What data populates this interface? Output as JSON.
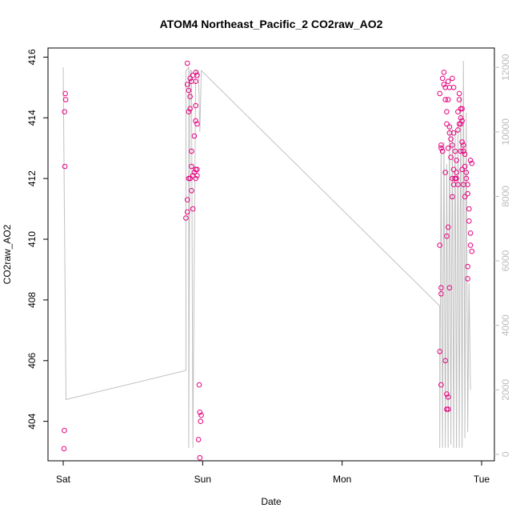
{
  "chart_data": {
    "type": "scatter",
    "title": "ATOM4 Northeast_Pacific_2 CO2raw_AO2",
    "xlabel": "Date",
    "ylabel": "CO2raw_AO2",
    "x_tick_labels": [
      "Sat",
      "Sun",
      "Mon",
      "Tue"
    ],
    "y_left": {
      "range": [
        402.7,
        416.3
      ],
      "ticks": [
        404,
        406,
        408,
        410,
        412,
        414,
        416
      ]
    },
    "y_right": {
      "range": [
        -200,
        12600
      ],
      "ticks": [
        0,
        2000,
        4000,
        6000,
        8000,
        10000,
        12000
      ],
      "color": "#bbbbbb"
    },
    "x_range_days": [
      0,
      3.0
    ],
    "colors": {
      "points": "#e6007e",
      "line": "#c0c0c0",
      "axis": "#000000"
    },
    "series": [
      {
        "type": "scatter",
        "axis": "left",
        "points": [
          [
            0.015,
            414.8
          ],
          [
            0.018,
            414.6
          ],
          [
            0.01,
            414.2
          ],
          [
            0.012,
            412.4
          ],
          [
            0.008,
            403.7
          ],
          [
            0.006,
            403.1
          ],
          [
            0.89,
            415.8
          ],
          [
            0.91,
            415.3
          ],
          [
            0.93,
            415.4
          ],
          [
            0.95,
            415.5
          ],
          [
            0.96,
            415.4
          ],
          [
            0.95,
            415.2
          ],
          [
            0.92,
            415.2
          ],
          [
            0.89,
            415.1
          ],
          [
            0.9,
            414.9
          ],
          [
            0.91,
            414.7
          ],
          [
            0.95,
            414.4
          ],
          [
            0.91,
            414.3
          ],
          [
            0.9,
            414.2
          ],
          [
            0.95,
            413.9
          ],
          [
            0.96,
            413.8
          ],
          [
            0.94,
            413.4
          ],
          [
            0.92,
            412.9
          ],
          [
            0.92,
            412.4
          ],
          [
            0.95,
            412.3
          ],
          [
            0.96,
            412.3
          ],
          [
            0.94,
            412.2
          ],
          [
            0.96,
            412.1
          ],
          [
            0.9,
            412.0
          ],
          [
            0.91,
            412.0
          ],
          [
            0.93,
            412.1
          ],
          [
            0.95,
            412.0
          ],
          [
            0.92,
            411.6
          ],
          [
            0.89,
            411.3
          ],
          [
            0.93,
            411.0
          ],
          [
            0.89,
            410.9
          ],
          [
            0.88,
            410.7
          ],
          [
            0.975,
            405.2
          ],
          [
            0.98,
            404.3
          ],
          [
            0.99,
            404.2
          ],
          [
            0.985,
            404.0
          ],
          [
            0.97,
            403.4
          ],
          [
            0.98,
            402.8
          ],
          [
            2.7,
            414.8
          ],
          [
            2.71,
            413.1
          ],
          [
            2.71,
            413.0
          ],
          [
            2.72,
            412.9
          ],
          [
            2.72,
            415.3
          ],
          [
            2.73,
            415.5
          ],
          [
            2.73,
            415.1
          ],
          [
            2.74,
            415.0
          ],
          [
            2.74,
            414.6
          ],
          [
            2.75,
            414.2
          ],
          [
            2.75,
            413.8
          ],
          [
            2.76,
            415.2
          ],
          [
            2.76,
            413.0
          ],
          [
            2.77,
            413.7
          ],
          [
            2.77,
            413.5
          ],
          [
            2.78,
            413.3
          ],
          [
            2.78,
            412.7
          ],
          [
            2.79,
            413.1
          ],
          [
            2.79,
            412.0
          ],
          [
            2.8,
            412.3
          ],
          [
            2.8,
            413.5
          ],
          [
            2.81,
            412.9
          ],
          [
            2.81,
            412.0
          ],
          [
            2.82,
            412.6
          ],
          [
            2.82,
            412.2
          ],
          [
            2.83,
            413.6
          ],
          [
            2.83,
            414.2
          ],
          [
            2.84,
            414.8
          ],
          [
            2.84,
            414.6
          ],
          [
            2.85,
            413.8
          ],
          [
            2.85,
            414.0
          ],
          [
            2.86,
            414.3
          ],
          [
            2.86,
            413.2
          ],
          [
            2.87,
            413.1
          ],
          [
            2.87,
            412.9
          ],
          [
            2.88,
            412.8
          ],
          [
            2.88,
            412.4
          ],
          [
            2.89,
            412.2
          ],
          [
            2.89,
            412.0
          ],
          [
            2.9,
            411.8
          ],
          [
            2.9,
            411.5
          ],
          [
            2.91,
            411.0
          ],
          [
            2.91,
            410.6
          ],
          [
            2.92,
            410.2
          ],
          [
            2.92,
            409.8
          ],
          [
            2.93,
            409.6
          ],
          [
            2.92,
            412.6
          ],
          [
            2.93,
            412.5
          ],
          [
            2.8,
            415.0
          ],
          [
            2.79,
            415.3
          ],
          [
            2.77,
            415.0
          ],
          [
            2.76,
            414.6
          ],
          [
            2.84,
            413.8
          ],
          [
            2.85,
            412.9
          ],
          [
            2.86,
            412.3
          ],
          [
            2.87,
            411.8
          ],
          [
            2.88,
            411.4
          ],
          [
            2.81,
            412.0
          ],
          [
            2.8,
            411.8
          ],
          [
            2.79,
            411.4
          ],
          [
            2.83,
            411.8
          ],
          [
            2.82,
            412.0
          ],
          [
            2.74,
            412.2
          ],
          [
            2.75,
            410.1
          ],
          [
            2.76,
            410.4
          ],
          [
            2.71,
            408.4
          ],
          [
            2.71,
            408.2
          ],
          [
            2.7,
            409.8
          ],
          [
            2.7,
            406.3
          ],
          [
            2.71,
            405.2
          ],
          [
            2.74,
            406.0
          ],
          [
            2.75,
            404.9
          ],
          [
            2.76,
            404.8
          ],
          [
            2.75,
            404.4
          ],
          [
            2.76,
            404.4
          ],
          [
            2.77,
            408.4
          ],
          [
            2.9,
            409.1
          ],
          [
            2.9,
            408.7
          ],
          [
            2.86,
            413.9
          ],
          [
            2.85,
            414.3
          ]
        ]
      },
      {
        "type": "line",
        "axis": "right",
        "points": [
          [
            0.0,
            12000
          ],
          [
            0.0,
            11950
          ],
          [
            0.02,
            1700
          ],
          [
            0.88,
            2600
          ],
          [
            0.88,
            11900
          ],
          [
            0.9,
            12000
          ],
          [
            0.9,
            200
          ],
          [
            0.91,
            11900
          ],
          [
            0.92,
            11900
          ],
          [
            0.93,
            200
          ],
          [
            0.95,
            11900
          ],
          [
            0.97,
            11900
          ],
          [
            0.98,
            10000
          ],
          [
            0.99,
            11900
          ],
          [
            2.7,
            4600
          ],
          [
            2.7,
            200
          ],
          [
            2.71,
            9600
          ],
          [
            2.72,
            200
          ],
          [
            2.73,
            9700
          ],
          [
            2.74,
            200
          ],
          [
            2.75,
            9000
          ],
          [
            2.76,
            200
          ],
          [
            2.77,
            10300
          ],
          [
            2.78,
            300
          ],
          [
            2.79,
            10100
          ],
          [
            2.8,
            200
          ],
          [
            2.81,
            10000
          ],
          [
            2.82,
            200
          ],
          [
            2.83,
            10200
          ],
          [
            2.84,
            200
          ],
          [
            2.85,
            11100
          ],
          [
            2.86,
            200
          ],
          [
            2.87,
            12200
          ],
          [
            2.88,
            500
          ],
          [
            2.89,
            10600
          ],
          [
            2.9,
            700
          ],
          [
            2.91,
            5300
          ],
          [
            2.92,
            2000
          ]
        ]
      }
    ]
  }
}
